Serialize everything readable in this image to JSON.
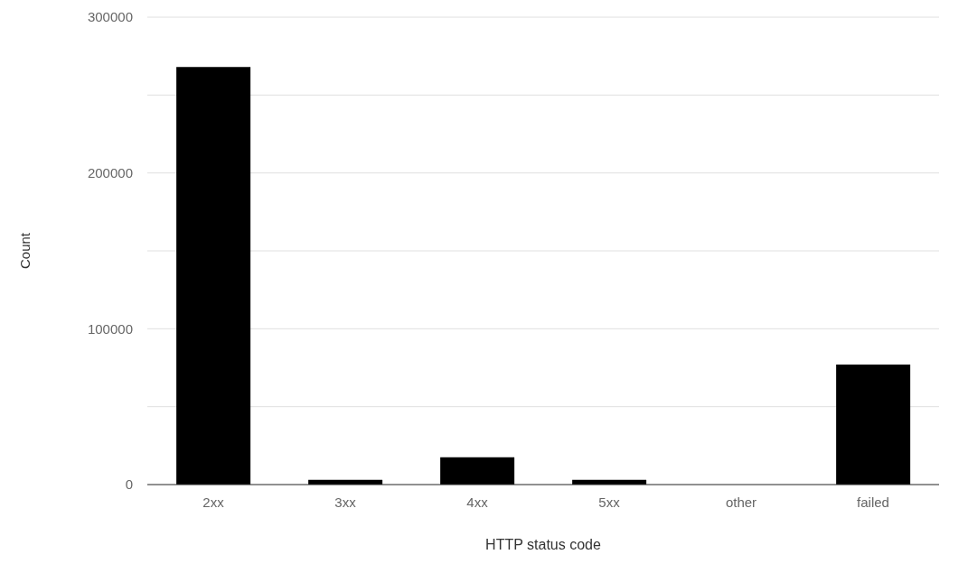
{
  "chart_data": {
    "type": "bar",
    "xlabel": "HTTP status code",
    "ylabel": "Count",
    "categories": [
      "2xx",
      "3xx",
      "4xx",
      "5xx",
      "other",
      "failed"
    ],
    "values": [
      268000,
      3000,
      17500,
      3000,
      0,
      77000
    ],
    "color": "#000000",
    "ylim": [
      0,
      300000
    ],
    "yticks": [
      0,
      {
        "value": 50000,
        "label": null
      },
      100000,
      {
        "value": 150000,
        "label": null
      },
      200000,
      {
        "value": 250000,
        "label": null
      },
      300000
    ],
    "grid": "y"
  }
}
